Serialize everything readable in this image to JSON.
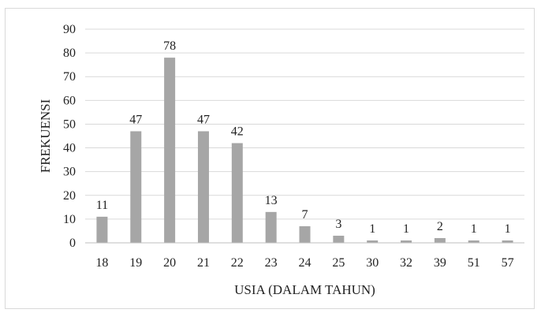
{
  "chart_data": {
    "type": "bar",
    "title": "",
    "xlabel": "USIA (DALAM TAHUN)",
    "ylabel": "FREKUENSI",
    "categories": [
      "18",
      "19",
      "20",
      "21",
      "22",
      "23",
      "24",
      "25",
      "30",
      "32",
      "39",
      "51",
      "57"
    ],
    "values": [
      11,
      47,
      78,
      47,
      42,
      13,
      7,
      3,
      1,
      1,
      2,
      1,
      1
    ],
    "ylim": [
      0,
      90
    ],
    "yticks": [
      0,
      10,
      20,
      30,
      40,
      50,
      60,
      70,
      80,
      90
    ],
    "grid": true,
    "legend": "none",
    "bar_color": "#a6a6a6",
    "grid_color": "#d9d9d9",
    "axis_color": "#bfbfbf"
  }
}
